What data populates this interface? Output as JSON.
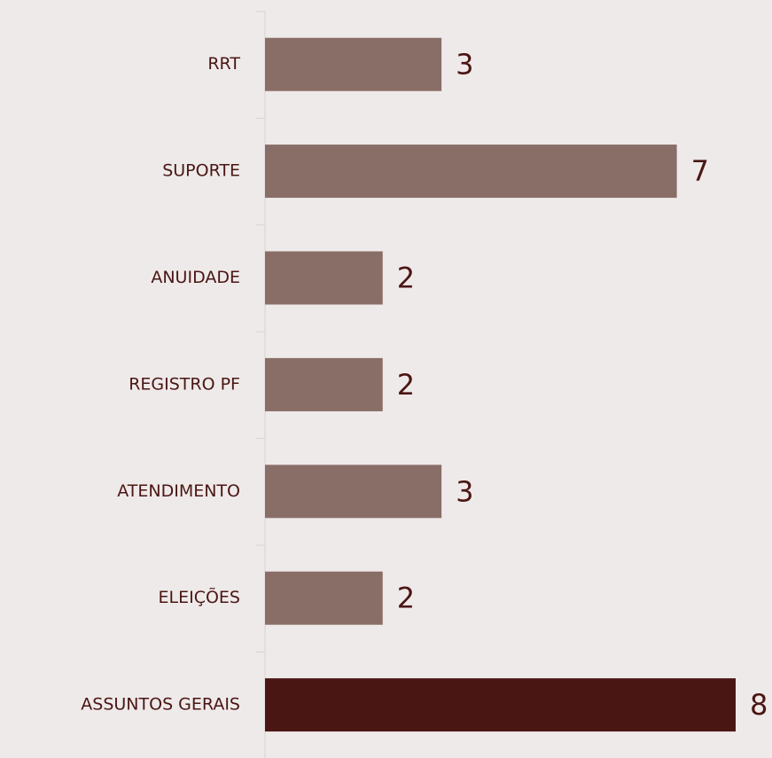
{
  "chart_data": {
    "type": "barh",
    "categories": [
      "RRT",
      "SUPORTE",
      "ANUIDADE",
      "REGISTRO PF",
      "ATENDIMENTO",
      "ELEIÇÕES",
      "ASSUNTOS GERAIS"
    ],
    "values": [
      3,
      7,
      2,
      2,
      3,
      2,
      8
    ],
    "colors": [
      "#896d67",
      "#896d67",
      "#896d67",
      "#896d67",
      "#896d67",
      "#896d67",
      "#4a1614"
    ]
  }
}
